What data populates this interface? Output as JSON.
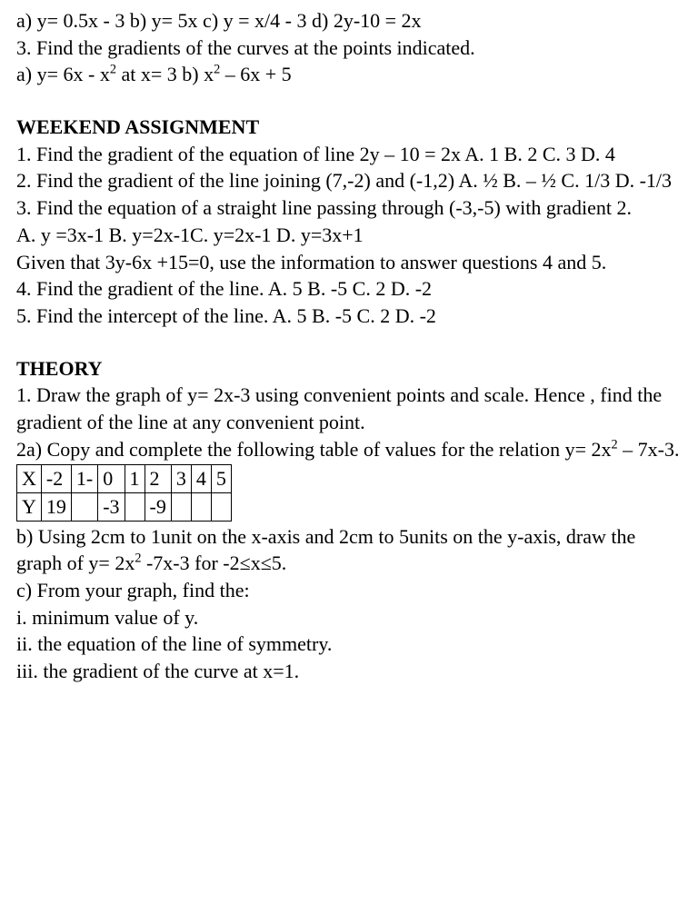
{
  "intro": {
    "line1": "a) y= 0.5x - 3     b) y= 5x     c)  y = x/4  -  3     d)   2y-10  =  2x",
    "line2": "3. Find the gradients of the curves at the points indicated.",
    "line3a": "a) y= 6x -  x",
    "line3b": "  at  x= 3       b)   x",
    "line3c": " – 6x + 5"
  },
  "weekend": {
    "title": "WEEKEND ASSIGNMENT",
    "q1": "1. Find the gradient of the equation of line 2y – 10 = 2x   A. 1   B.  2    C.  3   D.    4",
    "q2": "2. Find the gradient of the line joining (7,-2) and (-1,2)    A. ½    B. – ½   C.  1/3  D. -1/3",
    "q3a": "3. Find the equation of a straight line passing through (-3,-5) with gradient 2.",
    "q3b": "A. y =3x-1  B. y=2x-1C. y=2x-1   D. y=3x+1",
    "given": "Given that 3y-6x +15=0, use the information to answer questions 4 and 5.",
    "q4": "4. Find the gradient of the line.     A. 5  B.  -5     C.   2    D.  -2",
    "q5": "5. Find the intercept of the line. A. 5  B.  -5     C.   2    D.  -2"
  },
  "theory": {
    "title": "THEORY",
    "q1": "1. Draw the graph of y= 2x-3 using convenient points and scale. Hence , find the gradient of the line at any convenient point.",
    "q2a_pre": "2a) Copy and complete the following table of values for the relation y= 2x",
    "q2a_post": " – 7x-3.",
    "table": {
      "row1": [
        "X",
        "-2",
        "1-",
        "0",
        "1",
        "2",
        "3",
        "4",
        "5"
      ],
      "row2": [
        "Y",
        "19",
        "",
        "-3",
        "",
        "-9",
        "",
        "",
        ""
      ]
    },
    "q2b_pre": "b) Using 2cm to 1unit on the x-axis and 2cm to 5units on the y-axis, draw the graph of y= 2x",
    "q2b_post": " -7x-3 for -2≤x≤5.",
    "q2c": "c) From your graph, find the:",
    "qi": "i. minimum value of y.",
    "qii": "ii. the equation of the line of symmetry.",
    "qiii": "iii. the gradient of the curve at x=1."
  }
}
